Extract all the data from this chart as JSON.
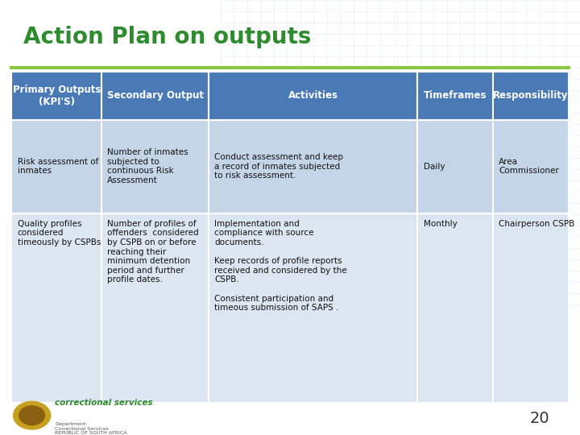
{
  "title": "Action Plan on outputs",
  "title_color": "#2e8b2e",
  "title_fontsize": 20,
  "bg_color": "#ffffff",
  "header_bg": "#4a7ab5",
  "header_text_color": "#ffffff",
  "row1_bg": "#c5d5e8",
  "row2_bg": "#dce6f1",
  "col_headers": [
    "Primary Outputs\n(KPI'S)",
    "Secondary Output",
    "Activities",
    "Timeframes",
    "Responsibility"
  ],
  "row1_data": [
    "Risk assessment of\ninmates",
    "Number of inmates\nsubjected to\ncontinuous Risk\nAssessment",
    "Conduct assessment and keep\na record of inmates subjected\nto risk assessment.",
    "Daily",
    "Area\nCommissioner"
  ],
  "row2_data": [
    "Quality profiles\nconsidered\ntimeously by CSPBs",
    "Number of profiles of\noffenders  considered\nby CSPB on or before\nreaching their\nminimum detention\nperiod and further\nprofile dates.",
    "Implementation and\ncompliance with source\ndocuments.\n\nKeep records of profile reports\nreceived and considered by the\nCSPB.\n\nConsistent participation and\ntimeous submission of SAPS .",
    "Monthly",
    "Chairperson CSPB"
  ],
  "footer_number": "20",
  "green_line_color": "#8dc63f",
  "cell_text_fontsize": 7.5,
  "header_fontsize": 8.5
}
